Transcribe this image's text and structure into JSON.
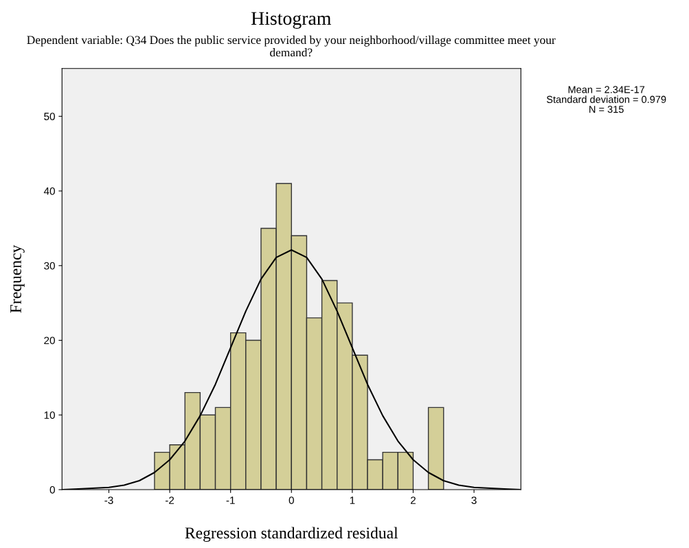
{
  "chart_data": {
    "type": "histogram",
    "title": "Histogram",
    "subtitle": "Dependent variable: Q34 Does the public service provided by your neighborhood/village committee meet your demand?",
    "xlabel": "Regression standardized residual",
    "ylabel": "Frequency",
    "bins": [
      -2.25,
      -2.0,
      -1.75,
      -1.5,
      -1.25,
      -1.0,
      -0.75,
      -0.5,
      -0.25,
      0.0,
      0.25,
      0.5,
      0.75,
      1.0,
      1.25,
      1.5,
      1.75,
      2.0,
      2.25,
      2.5
    ],
    "values": [
      5,
      6,
      13,
      10,
      11,
      21,
      20,
      35,
      41,
      34,
      23,
      28,
      25,
      18,
      4,
      5,
      5,
      0,
      11
    ],
    "color": "#d4cf98",
    "series": [
      {
        "type": "line",
        "color": "#000000",
        "x": [
          -3.75,
          -3.5,
          -3.0,
          -2.75,
          -2.5,
          -2.25,
          -2.0,
          -1.75,
          -1.5,
          -1.25,
          -1.0,
          -0.75,
          -0.5,
          -0.25,
          0.0,
          0.25,
          0.5,
          0.75,
          1.0,
          1.25,
          1.5,
          1.75,
          2.0,
          2.25,
          2.5,
          2.75,
          3.0,
          3.5,
          3.75
        ],
        "values": [
          0.0,
          0.1,
          0.3,
          0.6,
          1.2,
          2.3,
          4.0,
          6.5,
          9.9,
          14.1,
          19.0,
          23.9,
          28.2,
          31.1,
          32.1,
          31.1,
          28.2,
          23.9,
          19.0,
          14.1,
          9.9,
          6.5,
          4.0,
          2.3,
          1.2,
          0.6,
          0.3,
          0.1,
          0.0
        ]
      }
    ],
    "xlim": [
      -3.77,
      3.77
    ],
    "xticks": [
      -3,
      -2,
      -1,
      0,
      1,
      2,
      3
    ],
    "ylim": [
      0,
      56.4
    ],
    "yticks": [
      0,
      10,
      20,
      30,
      40,
      50
    ],
    "grid": false,
    "annotations": [
      "Mean = 2.34E-17",
      "Standard deviation = 0.979",
      "N = 315"
    ]
  }
}
